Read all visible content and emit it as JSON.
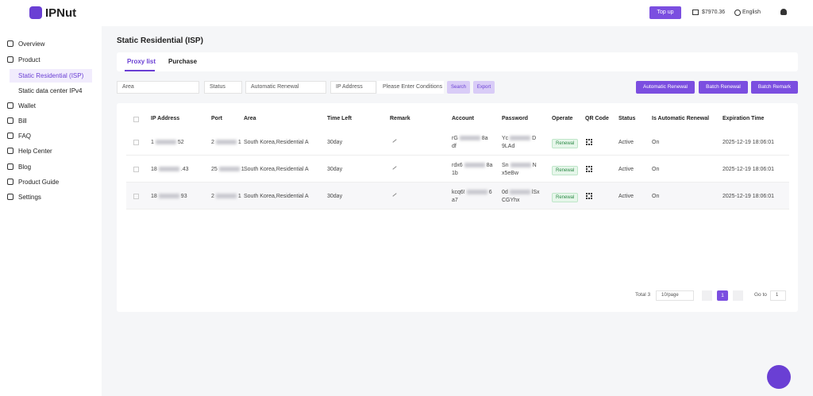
{
  "header": {
    "logo": "IPNut",
    "top_up": "Top up",
    "balance": "$7970.36",
    "language": "English"
  },
  "sidebar": {
    "items": [
      "Overview",
      "Product",
      "Static Residential (ISP)",
      "Static data center IPv4",
      "Wallet",
      "Bill",
      "FAQ",
      "Help Center",
      "Blog",
      "Product Guide",
      "Settings"
    ]
  },
  "page": {
    "title": "Static Residential (ISP)",
    "tabs": [
      "Proxy list",
      "Purchase"
    ]
  },
  "filters": {
    "area": "Area",
    "status": "Status",
    "renewal": "Automatic Renewal",
    "ip": "IP Address",
    "placeholder": "Please Enter Conditions",
    "search": "Search",
    "export": "Export"
  },
  "actions": {
    "auto_renewal": "Automatic Renewal",
    "batch_renewal": "Batch Renewal",
    "batch_remark": "Batch Remark"
  },
  "table": {
    "columns": [
      "IP Address",
      "Port",
      "Area",
      "Time Left",
      "Remark",
      "Account",
      "Password",
      "Operate",
      "QR Code",
      "Status",
      "Is Automatic Renewal",
      "Expiration Time"
    ],
    "rows": [
      {
        "ip": [
          "1",
          "52"
        ],
        "port": [
          "2",
          "1"
        ],
        "area": "South Korea,Residential A",
        "time_left": "30day",
        "account": [
          "rG",
          "8a",
          "df"
        ],
        "password": [
          "Yc",
          "D",
          "9LAd"
        ],
        "operate": "Renewal",
        "status": "Active",
        "auto": "On",
        "expiration": "2025-12-19 18:06:01"
      },
      {
        "ip": [
          "18",
          ".43"
        ],
        "port": [
          "25",
          "1"
        ],
        "area": "South Korea,Residential A",
        "time_left": "30day",
        "account": [
          "rdx6",
          "8a",
          "1b"
        ],
        "password": [
          "Sn",
          "N",
          "x5eBw"
        ],
        "operate": "Renewal",
        "status": "Active",
        "auto": "On",
        "expiration": "2025-12-19 18:06:01"
      },
      {
        "ip": [
          "18",
          "93"
        ],
        "port": [
          "2",
          "1"
        ],
        "area": "South Korea,Residential A",
        "time_left": "30day",
        "account": [
          "kcq6!",
          "6",
          "a7"
        ],
        "password": [
          "0d",
          "lSx",
          "CGYhx"
        ],
        "operate": "Renewal",
        "status": "Active",
        "auto": "On",
        "expiration": "2025-12-19 18:06:01"
      }
    ]
  },
  "pagination": {
    "total": "Total 3",
    "page_size": "10/page",
    "current": "1",
    "goto": "Go to",
    "goto_value": "1"
  }
}
